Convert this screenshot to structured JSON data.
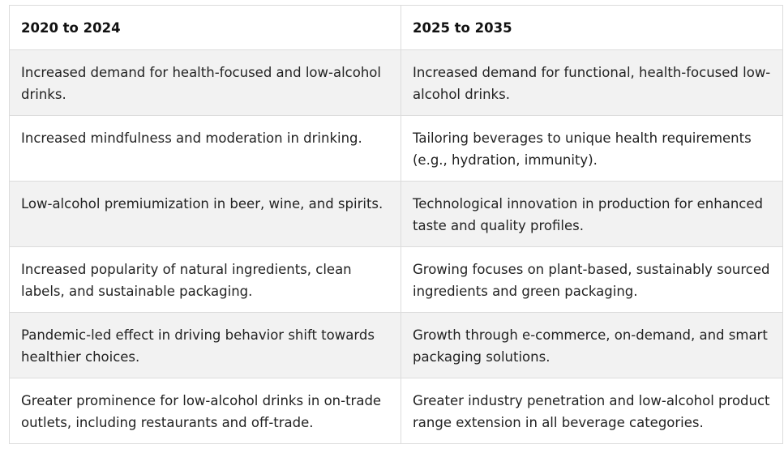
{
  "table": {
    "headers": [
      "2020 to 2024",
      "2025 to 2035"
    ],
    "rows": [
      [
        "Increased demand for health-focused and low-alcohol drinks.",
        "Increased demand for functional, health-focused low-alcohol drinks."
      ],
      [
        "Increased mindfulness and moderation in drinking.",
        "Tailoring beverages to unique health requirements (e.g., hydration, immunity)."
      ],
      [
        "Low-alcohol premiumization in beer, wine, and spirits.",
        "Technological innovation in production for enhanced taste and quality profiles."
      ],
      [
        "Increased popularity of natural ingredients, clean labels, and sustainable packaging.",
        "Growing focuses on plant-based, sustainably sourced ingredients and green packaging."
      ],
      [
        "Pandemic-led effect in driving behavior shift towards healthier choices.",
        "Growth through e-commerce, on-demand, and smart packaging solutions."
      ],
      [
        "Greater prominence for low-alcohol drinks in on-trade outlets, including restaurants and off-trade.",
        "Greater industry penetration and low-alcohol product range extension in all beverage categories."
      ]
    ]
  },
  "colors": {
    "border": "#dcdcdc",
    "shaded_row": "#f2f2f2",
    "plain_row": "#ffffff"
  }
}
